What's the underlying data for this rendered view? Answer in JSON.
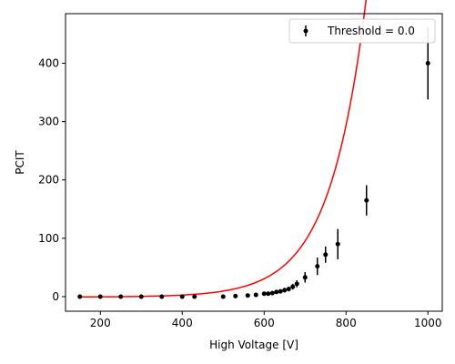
{
  "chart_data": {
    "type": "scatter",
    "xlabel": "High Voltage [V]",
    "ylabel": "PCIT",
    "xlim": [
      115,
      1035
    ],
    "ylim": [
      -25,
      485
    ],
    "xticks": [
      200,
      400,
      600,
      800,
      1000
    ],
    "yticks": [
      0,
      100,
      200,
      300,
      400
    ],
    "legend": {
      "position": "top-right",
      "label": "Threshold = 0.0"
    },
    "series": [
      {
        "name": "Threshold = 0.0",
        "kind": "errorbar",
        "color": "#000000",
        "points": [
          {
            "x": 150,
            "y": 0,
            "err": 1
          },
          {
            "x": 200,
            "y": 0,
            "err": 1
          },
          {
            "x": 250,
            "y": 0,
            "err": 1
          },
          {
            "x": 300,
            "y": 0,
            "err": 1
          },
          {
            "x": 350,
            "y": 0,
            "err": 1
          },
          {
            "x": 400,
            "y": 0,
            "err": 1
          },
          {
            "x": 430,
            "y": 0,
            "err": 1
          },
          {
            "x": 500,
            "y": 0,
            "err": 1
          },
          {
            "x": 530,
            "y": 1,
            "err": 1
          },
          {
            "x": 560,
            "y": 2,
            "err": 1
          },
          {
            "x": 580,
            "y": 3,
            "err": 1
          },
          {
            "x": 600,
            "y": 5,
            "err": 2
          },
          {
            "x": 610,
            "y": 5,
            "err": 2
          },
          {
            "x": 620,
            "y": 6,
            "err": 2
          },
          {
            "x": 630,
            "y": 8,
            "err": 3
          },
          {
            "x": 640,
            "y": 9,
            "err": 3
          },
          {
            "x": 650,
            "y": 11,
            "err": 4
          },
          {
            "x": 660,
            "y": 13,
            "err": 4
          },
          {
            "x": 670,
            "y": 17,
            "err": 5
          },
          {
            "x": 680,
            "y": 22,
            "err": 6
          },
          {
            "x": 700,
            "y": 33,
            "err": 9
          },
          {
            "x": 730,
            "y": 52,
            "err": 15
          },
          {
            "x": 750,
            "y": 72,
            "err": 14
          },
          {
            "x": 780,
            "y": 90,
            "err": 26
          },
          {
            "x": 850,
            "y": 165,
            "err": 26
          },
          {
            "x": 1000,
            "y": 400,
            "err": 62
          }
        ]
      },
      {
        "kind": "fit",
        "color": "#ff0000",
        "function": "exponential",
        "params": {
          "a": 0.0378,
          "b": 0.0112,
          "c": -0.7
        },
        "x_range": [
          150,
          1000
        ]
      }
    ]
  }
}
